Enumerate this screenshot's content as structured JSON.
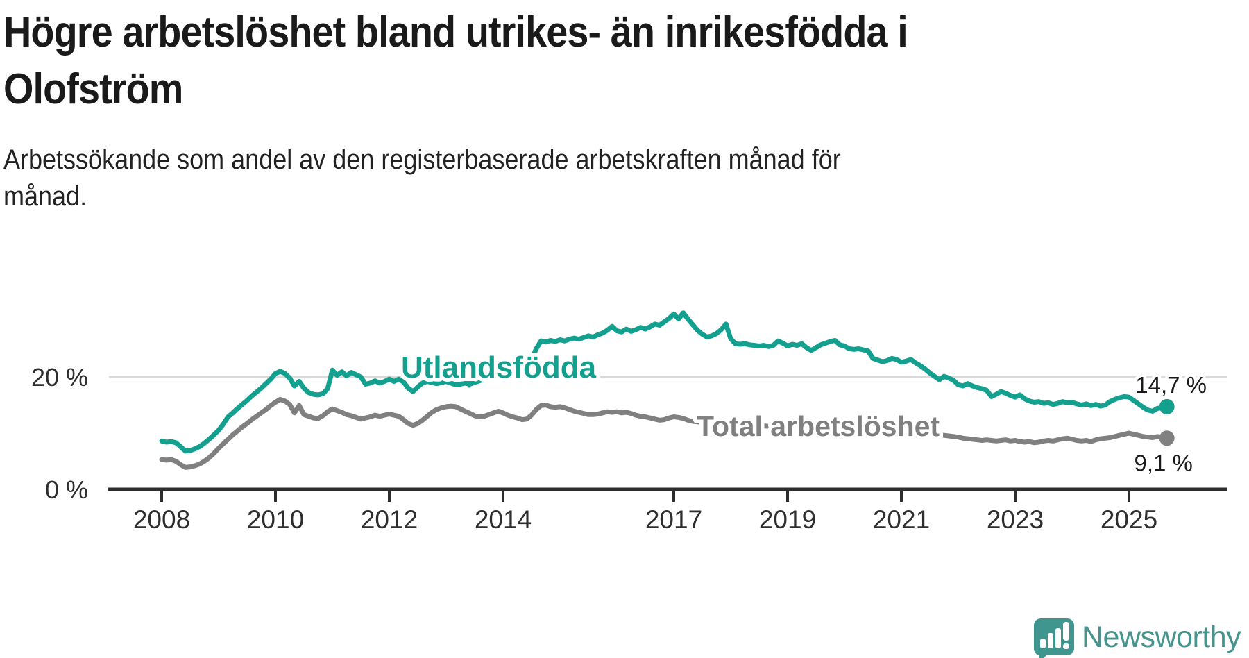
{
  "header": {
    "title_lines": [
      "Högre arbetslöshet bland utrikes- än inrikesfödda i",
      "Olofström"
    ],
    "subtitle_lines": [
      "Arbetssökande som andel av den registerbaserade arbetskraften månad för",
      "månad."
    ]
  },
  "footer": {
    "brand": "Newsworthy"
  },
  "colors": {
    "accent_teal": "#14a08f",
    "series_gray": "#808080",
    "axis": "#2e2e2e",
    "grid": "#d9d9d9",
    "text": "#1a1a1a",
    "logo_teal": "#45958e"
  },
  "chart_data": {
    "type": "line",
    "unit": "%",
    "title": "Högre arbetslöshet bland utrikes- än inrikesfödda i Olofström",
    "subtitle": "Arbetssökande som andel av den registerbaserade arbetskraften månad för månad.",
    "start_year": 2008,
    "points_per_year": 12,
    "x_ticks": [
      2008,
      2010,
      2012,
      2014,
      2017,
      2019,
      2021,
      2023,
      2025
    ],
    "y_ticks": [
      {
        "value": 0,
        "label": "0 %"
      },
      {
        "value": 20,
        "label": "20 %"
      }
    ],
    "ylim": [
      0,
      33
    ],
    "grid": "single-line-at-20",
    "legend_position": "inline-labels",
    "series": [
      {
        "name": "Utlandsfödda",
        "color": "#14a08f",
        "end_label": "14,7 %",
        "end_value": 14.7,
        "values": [
          8.6,
          8.4,
          8.5,
          8.3,
          7.6,
          6.8,
          6.9,
          7.2,
          7.6,
          8.2,
          8.9,
          9.7,
          10.5,
          11.6,
          12.9,
          13.6,
          14.4,
          15.1,
          15.8,
          16.6,
          17.3,
          18.0,
          18.8,
          19.6,
          20.6,
          21.0,
          20.6,
          19.8,
          18.4,
          19.2,
          18.0,
          17.2,
          16.9,
          16.8,
          17.0,
          17.9,
          21.2,
          20.3,
          20.9,
          20.2,
          20.8,
          20.4,
          20.0,
          18.7,
          18.9,
          19.3,
          18.9,
          19.2,
          19.6,
          19.2,
          19.6,
          19.1,
          18.0,
          17.4,
          18.2,
          18.9,
          19.2,
          19.0,
          18.8,
          19.0,
          19.2,
          18.9,
          18.6,
          18.7,
          18.9,
          18.7,
          19.0,
          19.3,
          19.6,
          19.9,
          20.1,
          20.2,
          20.4,
          20.7,
          21.0,
          21.2,
          21.6,
          22.2,
          23.2,
          25.0,
          26.4,
          26.2,
          26.5,
          26.3,
          26.6,
          26.4,
          26.7,
          26.9,
          26.7,
          27.0,
          27.3,
          27.1,
          27.5,
          27.8,
          28.3,
          29.0,
          28.2,
          28.0,
          28.5,
          28.1,
          28.4,
          28.8,
          28.5,
          28.9,
          29.4,
          29.2,
          29.8,
          30.4,
          31.2,
          30.3,
          31.4,
          30.3,
          29.3,
          28.3,
          27.6,
          27.1,
          27.3,
          27.7,
          28.4,
          29.4,
          26.8,
          25.9,
          25.8,
          25.9,
          25.7,
          25.6,
          25.5,
          25.6,
          25.4,
          25.6,
          26.4,
          26.0,
          25.5,
          25.8,
          25.6,
          25.9,
          25.2,
          24.7,
          25.2,
          25.7,
          26.0,
          26.3,
          26.5,
          25.7,
          25.5,
          25.0,
          24.9,
          25.0,
          24.8,
          24.6,
          23.3,
          23.0,
          22.7,
          22.9,
          23.3,
          23.1,
          22.6,
          22.8,
          23.1,
          22.5,
          22.0,
          21.4,
          20.7,
          20.1,
          19.5,
          20.1,
          19.8,
          19.4,
          18.6,
          18.4,
          18.8,
          18.4,
          18.1,
          17.9,
          17.6,
          16.5,
          16.9,
          17.4,
          17.1,
          16.7,
          16.4,
          16.8,
          16.1,
          15.7,
          15.5,
          15.6,
          15.3,
          15.4,
          15.1,
          15.3,
          15.6,
          15.4,
          15.5,
          15.2,
          15.0,
          15.2,
          14.9,
          15.1,
          14.8,
          15.0,
          15.6,
          16.0,
          16.3,
          16.5,
          16.4,
          15.8,
          15.2,
          14.6,
          14.1,
          13.9,
          14.4,
          14.5,
          14.7
        ]
      },
      {
        "name": "Total arbetslöshet",
        "color": "#808080",
        "end_label": "9,1 %",
        "end_value": 9.1,
        "values": [
          5.3,
          5.2,
          5.3,
          5.0,
          4.4,
          3.9,
          4.0,
          4.2,
          4.5,
          5.0,
          5.6,
          6.4,
          7.3,
          8.1,
          8.9,
          9.7,
          10.4,
          11.1,
          11.7,
          12.4,
          13.0,
          13.6,
          14.2,
          14.9,
          15.5,
          16.0,
          15.7,
          15.1,
          13.6,
          14.9,
          13.3,
          13.0,
          12.7,
          12.6,
          13.1,
          13.8,
          14.3,
          14.0,
          13.7,
          13.3,
          13.1,
          12.8,
          12.5,
          12.7,
          12.9,
          13.2,
          13.0,
          13.2,
          13.4,
          13.2,
          13.0,
          12.4,
          11.7,
          11.4,
          11.7,
          12.3,
          13.0,
          13.7,
          14.2,
          14.5,
          14.7,
          14.8,
          14.7,
          14.3,
          13.9,
          13.5,
          13.1,
          12.9,
          13.0,
          13.3,
          13.6,
          13.9,
          13.6,
          13.2,
          12.9,
          12.7,
          12.4,
          12.5,
          13.2,
          14.2,
          14.9,
          15.0,
          14.7,
          14.6,
          14.7,
          14.5,
          14.2,
          13.9,
          13.7,
          13.5,
          13.3,
          13.3,
          13.4,
          13.6,
          13.8,
          13.7,
          13.8,
          13.6,
          13.7,
          13.5,
          13.2,
          13.0,
          12.9,
          12.7,
          12.5,
          12.3,
          12.4,
          12.7,
          12.9,
          12.8,
          12.6,
          12.3,
          12.1,
          12.0,
          11.9,
          11.8,
          11.9,
          11.8,
          11.7,
          11.8,
          11.7,
          11.5,
          11.4,
          11.5,
          11.4,
          11.3,
          11.2,
          11.3,
          11.2,
          11.3,
          11.4,
          11.3,
          11.2,
          11.1,
          11.0,
          11.1,
          10.9,
          10.8,
          10.9,
          11.0,
          11.1,
          11.2,
          11.1,
          11.0,
          10.9,
          10.8,
          10.9,
          11.2,
          11.4,
          11.5,
          11.3,
          11.2,
          11.0,
          11.1,
          11.2,
          11.0,
          10.9,
          10.8,
          10.7,
          10.5,
          10.3,
          10.1,
          10.0,
          9.8,
          9.7,
          9.6,
          9.5,
          9.4,
          9.3,
          9.1,
          9.0,
          8.9,
          8.8,
          8.7,
          8.8,
          8.7,
          8.6,
          8.7,
          8.8,
          8.6,
          8.7,
          8.5,
          8.4,
          8.5,
          8.3,
          8.4,
          8.6,
          8.7,
          8.6,
          8.8,
          9.0,
          9.1,
          8.9,
          8.7,
          8.6,
          8.7,
          8.5,
          8.8,
          9.0,
          9.1,
          9.2,
          9.4,
          9.6,
          9.8,
          10.0,
          9.8,
          9.6,
          9.4,
          9.3,
          9.2,
          9.4,
          9.3,
          9.1
        ]
      }
    ]
  }
}
